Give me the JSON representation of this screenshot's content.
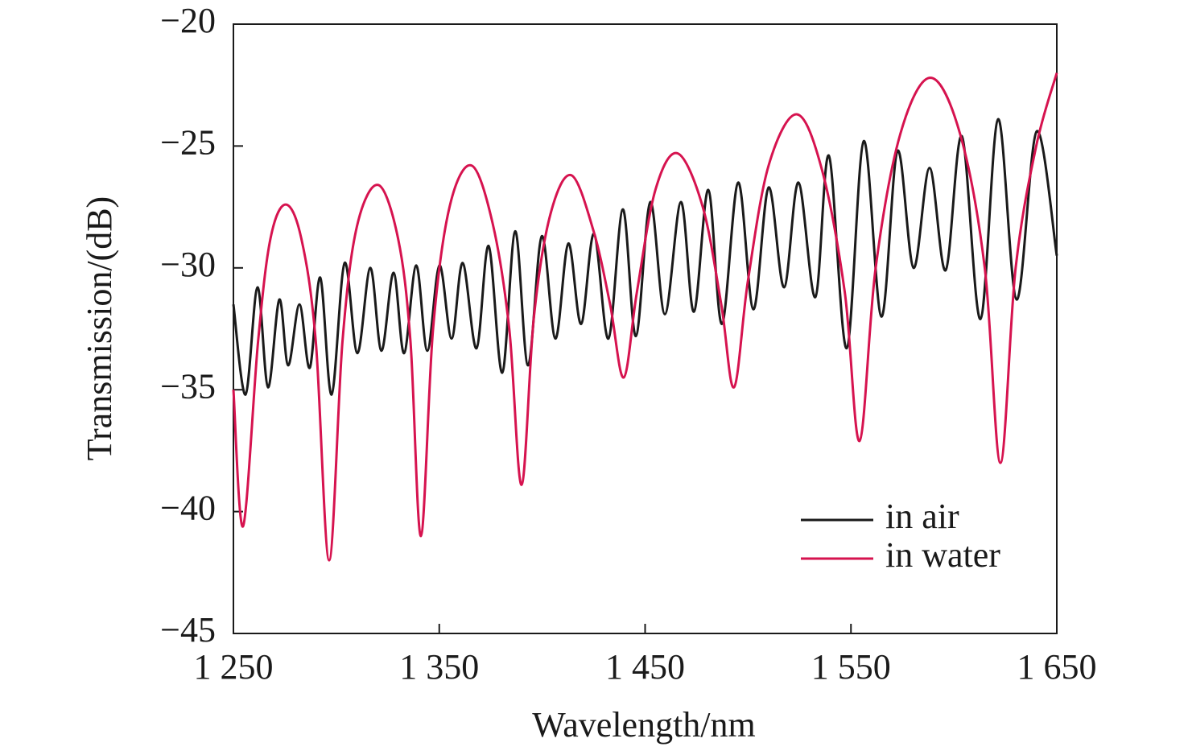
{
  "chart_data": {
    "type": "line",
    "x_label": "Wavelength/nm",
    "y_label": "Transmission/(dB)",
    "xlim": [
      1250,
      1650
    ],
    "xticks": [
      {
        "value": 1250,
        "label": "1 250"
      },
      {
        "value": 1350,
        "label": "1 350"
      },
      {
        "value": 1450,
        "label": "1 450"
      },
      {
        "value": 1550,
        "label": "1 550"
      },
      {
        "value": 1650,
        "label": "1 650"
      }
    ],
    "ylim": [
      -45,
      -20
    ],
    "yticks": [
      {
        "value": -45,
        "label": "−45"
      },
      {
        "value": -40,
        "label": "−40"
      },
      {
        "value": -35,
        "label": "−35"
      },
      {
        "value": -30,
        "label": "−30"
      },
      {
        "value": -25,
        "label": "−25"
      },
      {
        "value": -20,
        "label": "−20"
      }
    ],
    "legend": "lower right",
    "series": [
      {
        "name": "in air",
        "color": "#1a1a1a",
        "x": [
          1250,
          1255.9,
          1261.7,
          1266.8,
          1272.3,
          1276.6,
          1282.1,
          1287.1,
          1292.2,
          1297.7,
          1304.0,
          1310.2,
          1316.5,
          1321.9,
          1327.8,
          1332.9,
          1338.8,
          1344.2,
          1350.1,
          1356.0,
          1361.4,
          1368.1,
          1374.0,
          1380.6,
          1386.9,
          1393.1,
          1399.8,
          1406.4,
          1412.7,
          1418.9,
          1425.2,
          1432.2,
          1439.2,
          1445.5,
          1452.5,
          1459.6,
          1467.4,
          1473.7,
          1480.7,
          1487.3,
          1495.2,
          1502.6,
          1510.0,
          1517.5,
          1524.5,
          1532.7,
          1539.3,
          1547.9,
          1556.2,
          1564.8,
          1572.6,
          1580.4,
          1588.2,
          1596.0,
          1603.9,
          1612.9,
          1621.5,
          1630.5,
          1640.2,
          1650.0
        ],
        "values": [
          -31.5,
          -35.2,
          -30.8,
          -34.9,
          -31.3,
          -34.0,
          -31.5,
          -34.1,
          -30.4,
          -35.2,
          -29.8,
          -33.5,
          -30.0,
          -33.4,
          -30.2,
          -33.5,
          -29.9,
          -33.4,
          -29.9,
          -32.9,
          -29.8,
          -33.3,
          -29.1,
          -34.3,
          -28.5,
          -34.0,
          -28.7,
          -32.9,
          -29.0,
          -32.3,
          -28.6,
          -32.9,
          -27.6,
          -32.8,
          -27.3,
          -31.9,
          -27.3,
          -31.8,
          -26.8,
          -32.3,
          -26.5,
          -31.7,
          -26.7,
          -30.8,
          -26.5,
          -31.2,
          -25.4,
          -33.3,
          -24.8,
          -32.0,
          -25.2,
          -30.0,
          -25.9,
          -30.1,
          -24.6,
          -32.1,
          -23.9,
          -31.3,
          -24.4,
          -29.5
        ]
      },
      {
        "name": "in water",
        "color": "#d6134f",
        "x": [
          1250,
          1254.7,
          1262,
          1268,
          1275.4,
          1283,
          1290,
          1296.5,
          1303,
          1310,
          1320.4,
          1330,
          1336,
          1341.1,
          1347,
          1355,
          1365.7,
          1376,
          1384,
          1390,
          1396,
          1404,
          1414.2,
          1425,
          1433,
          1439.6,
          1446,
          1455,
          1465.8,
          1478,
          1487,
          1493.2,
          1500,
          1510,
          1523.7,
          1536,
          1547,
          1554.2,
          1562,
          1574,
          1588.6,
          1603,
          1615,
          1622.6,
          1630,
          1640,
          1650
        ],
        "values": [
          -35,
          -40.6,
          -33,
          -28.8,
          -27.4,
          -28.8,
          -33,
          -42,
          -33,
          -28.3,
          -26.6,
          -28.8,
          -33,
          -41,
          -32.5,
          -27.5,
          -25.8,
          -28.2,
          -32.5,
          -38.9,
          -32,
          -27.8,
          -26.2,
          -28.5,
          -31.5,
          -34.5,
          -31,
          -26.8,
          -25.3,
          -27.5,
          -31.5,
          -34.9,
          -30.5,
          -25.8,
          -23.7,
          -26,
          -31,
          -37.1,
          -30,
          -24.5,
          -22.2,
          -24.5,
          -30,
          -38,
          -30,
          -25,
          -22
        ]
      }
    ]
  }
}
